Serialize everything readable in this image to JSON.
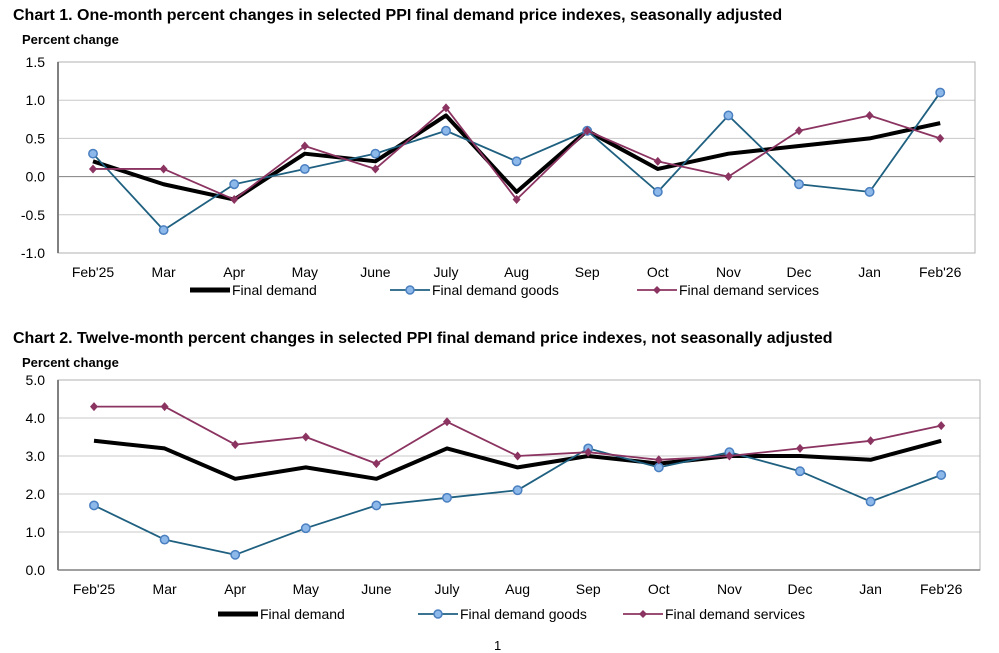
{
  "page_number": "1",
  "series_styles": {
    "final_demand": {
      "color": "#000000",
      "marker": "none"
    },
    "final_demand_goods": {
      "color": "#1f6080",
      "marker": "circle",
      "marker_fill": "#8db8ea",
      "marker_stroke": "#4a7fc0"
    },
    "final_demand_services": {
      "color": "#8b3461",
      "marker": "diamond",
      "marker_fill": "#8b3461"
    }
  },
  "chart_data": [
    {
      "type": "line",
      "title": "Chart 1. One-month percent changes in selected PPI final demand price indexes, seasonally adjusted",
      "xlabel": "",
      "ylabel": "Percent change",
      "ylim": [
        -1.0,
        1.5
      ],
      "yticks": [
        1.5,
        1.0,
        0.5,
        0.0,
        -0.5,
        -1.0
      ],
      "ytick_labels": [
        "1.5",
        "1.0",
        "0.5",
        "0.0",
        "-0.5",
        "-1.0"
      ],
      "grid": true,
      "legend_position": "bottom",
      "categories": [
        "Feb'25",
        "Mar",
        "Apr",
        "May",
        "June",
        "July",
        "Aug",
        "Sep",
        "Oct",
        "Nov",
        "Dec",
        "Jan",
        "Feb'26"
      ],
      "series": [
        {
          "key": "final_demand",
          "name": "Final demand",
          "values": [
            0.2,
            -0.1,
            -0.3,
            0.3,
            0.2,
            0.8,
            -0.2,
            0.6,
            0.1,
            0.3,
            0.4,
            0.5,
            0.7
          ]
        },
        {
          "key": "final_demand_goods",
          "name": "Final demand goods",
          "values": [
            0.3,
            -0.7,
            -0.1,
            0.1,
            0.3,
            0.6,
            0.2,
            0.6,
            -0.2,
            0.8,
            -0.1,
            -0.2,
            1.1
          ]
        },
        {
          "key": "final_demand_services",
          "name": "Final demand services",
          "values": [
            0.1,
            0.1,
            -0.3,
            0.4,
            0.1,
            0.9,
            -0.3,
            0.6,
            0.2,
            0.0,
            0.6,
            0.8,
            0.5
          ]
        }
      ]
    },
    {
      "type": "line",
      "title": "Chart 2. Twelve-month percent changes in selected PPI final demand price indexes, not seasonally adjusted",
      "xlabel": "",
      "ylabel": "Percent change",
      "ylim": [
        0.0,
        5.0
      ],
      "yticks": [
        5.0,
        4.0,
        3.0,
        2.0,
        1.0,
        0.0
      ],
      "ytick_labels": [
        "5.0",
        "4.0",
        "3.0",
        "2.0",
        "1.0",
        "0.0"
      ],
      "grid": true,
      "legend_position": "bottom",
      "categories": [
        "Feb'25",
        "Mar",
        "Apr",
        "May",
        "June",
        "July",
        "Aug",
        "Sep",
        "Oct",
        "Nov",
        "Dec",
        "Jan",
        "Feb'26"
      ],
      "series": [
        {
          "key": "final_demand",
          "name": "Final demand",
          "values": [
            3.4,
            3.2,
            2.4,
            2.7,
            2.4,
            3.2,
            2.7,
            3.0,
            2.8,
            3.0,
            3.0,
            2.9,
            3.4
          ]
        },
        {
          "key": "final_demand_goods",
          "name": "Final demand goods",
          "values": [
            1.7,
            0.8,
            0.4,
            1.1,
            1.7,
            1.9,
            2.1,
            3.2,
            2.7,
            3.1,
            2.6,
            1.8,
            2.5
          ]
        },
        {
          "key": "final_demand_services",
          "name": "Final demand services",
          "values": [
            4.3,
            4.3,
            3.3,
            3.5,
            2.8,
            3.9,
            3.0,
            3.1,
            2.9,
            3.0,
            3.2,
            3.4,
            3.8
          ]
        }
      ]
    }
  ]
}
